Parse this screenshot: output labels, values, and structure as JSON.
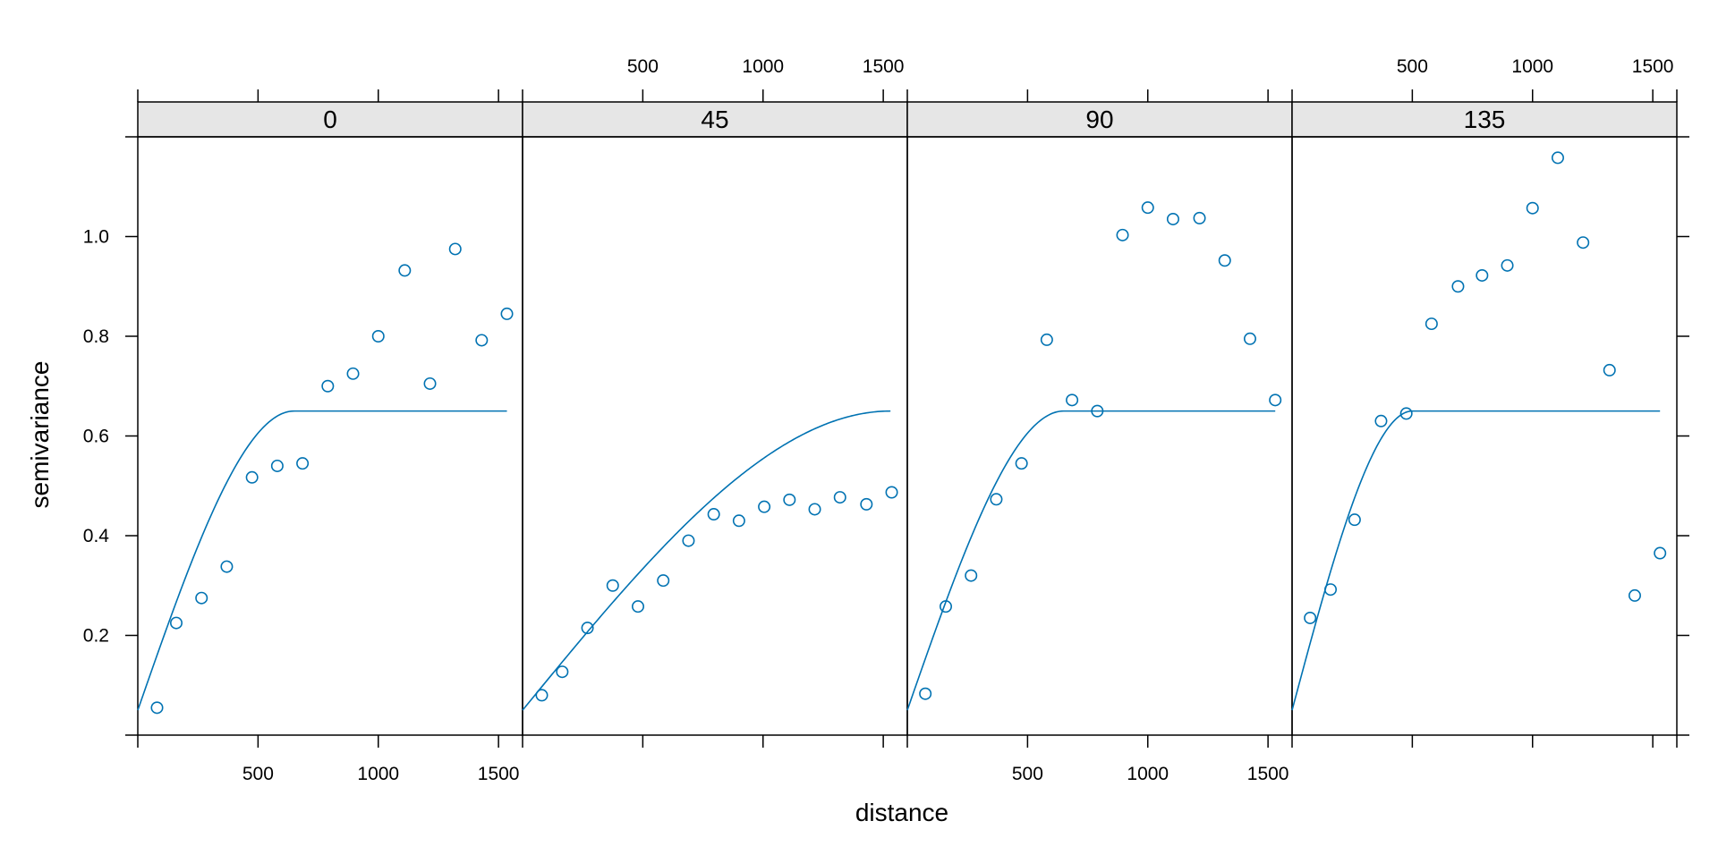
{
  "chart_data": {
    "type": "scatter",
    "xlabel": "distance",
    "ylabel": "semivariance",
    "xlim": [
      0,
      1600
    ],
    "ylim": [
      0,
      1.2
    ],
    "x_ticks": [
      500,
      1000,
      1500
    ],
    "y_ticks": [
      0.2,
      0.4,
      0.6,
      0.8,
      1.0
    ],
    "y_tick_labels": [
      "0.2",
      "0.4",
      "0.6",
      "0.8",
      "1.0"
    ],
    "grid": false,
    "panels": [
      {
        "label": "0",
        "points": [
          {
            "x": 80,
            "y": 0.055
          },
          {
            "x": 160,
            "y": 0.225
          },
          {
            "x": 265,
            "y": 0.275
          },
          {
            "x": 370,
            "y": 0.338
          },
          {
            "x": 475,
            "y": 0.517
          },
          {
            "x": 580,
            "y": 0.54
          },
          {
            "x": 685,
            "y": 0.545
          },
          {
            "x": 790,
            "y": 0.7
          },
          {
            "x": 895,
            "y": 0.725
          },
          {
            "x": 1000,
            "y": 0.8
          },
          {
            "x": 1110,
            "y": 0.932
          },
          {
            "x": 1215,
            "y": 0.705
          },
          {
            "x": 1320,
            "y": 0.975
          },
          {
            "x": 1430,
            "y": 0.792
          },
          {
            "x": 1535,
            "y": 0.845
          }
        ],
        "model": {
          "nugget": 0.05,
          "sill": 0.65,
          "range": 650,
          "x_max": 1535
        }
      },
      {
        "label": "45",
        "points": [
          {
            "x": 80,
            "y": 0.08
          },
          {
            "x": 165,
            "y": 0.127
          },
          {
            "x": 270,
            "y": 0.215
          },
          {
            "x": 375,
            "y": 0.3
          },
          {
            "x": 480,
            "y": 0.258
          },
          {
            "x": 585,
            "y": 0.31
          },
          {
            "x": 690,
            "y": 0.39
          },
          {
            "x": 795,
            "y": 0.443
          },
          {
            "x": 900,
            "y": 0.43
          },
          {
            "x": 1005,
            "y": 0.458
          },
          {
            "x": 1110,
            "y": 0.472
          },
          {
            "x": 1215,
            "y": 0.453
          },
          {
            "x": 1320,
            "y": 0.477
          },
          {
            "x": 1430,
            "y": 0.463
          },
          {
            "x": 1535,
            "y": 0.487
          }
        ],
        "model": {
          "nugget": 0.05,
          "sill": 0.65,
          "range": 1530,
          "x_max": 1530
        }
      },
      {
        "label": "90",
        "points": [
          {
            "x": 75,
            "y": 0.083
          },
          {
            "x": 160,
            "y": 0.258
          },
          {
            "x": 265,
            "y": 0.32
          },
          {
            "x": 370,
            "y": 0.473
          },
          {
            "x": 475,
            "y": 0.545
          },
          {
            "x": 580,
            "y": 0.793
          },
          {
            "x": 685,
            "y": 0.672
          },
          {
            "x": 790,
            "y": 0.65
          },
          {
            "x": 895,
            "y": 1.003
          },
          {
            "x": 1000,
            "y": 1.058
          },
          {
            "x": 1105,
            "y": 1.035
          },
          {
            "x": 1215,
            "y": 1.037
          },
          {
            "x": 1320,
            "y": 0.952
          },
          {
            "x": 1425,
            "y": 0.795
          },
          {
            "x": 1530,
            "y": 0.672
          }
        ],
        "model": {
          "nugget": 0.05,
          "sill": 0.65,
          "range": 650,
          "x_max": 1530
        }
      },
      {
        "label": "135",
        "points": [
          {
            "x": 75,
            "y": 0.235
          },
          {
            "x": 160,
            "y": 0.292
          },
          {
            "x": 260,
            "y": 0.432
          },
          {
            "x": 370,
            "y": 0.63
          },
          {
            "x": 475,
            "y": 0.645
          },
          {
            "x": 580,
            "y": 0.825
          },
          {
            "x": 690,
            "y": 0.9
          },
          {
            "x": 790,
            "y": 0.922
          },
          {
            "x": 895,
            "y": 0.942
          },
          {
            "x": 1000,
            "y": 1.057
          },
          {
            "x": 1105,
            "y": 1.158
          },
          {
            "x": 1210,
            "y": 0.988
          },
          {
            "x": 1320,
            "y": 0.732
          },
          {
            "x": 1425,
            "y": 0.28
          },
          {
            "x": 1530,
            "y": 0.365
          }
        ],
        "model": {
          "nugget": 0.05,
          "sill": 0.65,
          "range": 500,
          "x_max": 1530
        }
      }
    ],
    "colors": {
      "series": "#0072b2",
      "strip_background": "#e6e6e6",
      "frame": "#000000"
    }
  }
}
